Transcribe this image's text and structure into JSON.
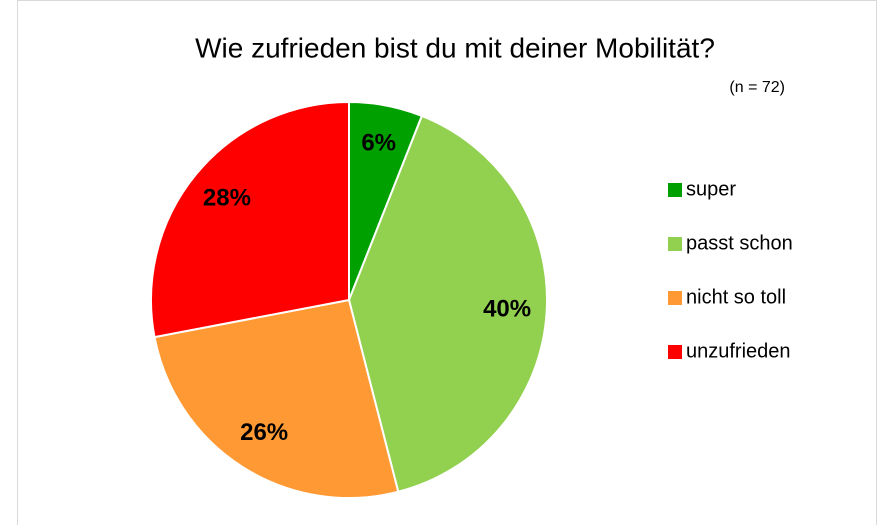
{
  "chart_data": {
    "type": "pie",
    "title": "Wie zufrieden bist du mit deiner Mobilität?",
    "subtitle": "(n = 72)",
    "categories": [
      "super",
      "passt schon",
      "nicht so toll",
      "unzufrieden"
    ],
    "values": [
      6,
      40,
      26,
      28
    ],
    "value_labels": [
      "6%",
      "40%",
      "26%",
      "28%"
    ],
    "colors": [
      "#00a000",
      "#92d050",
      "#ff9933",
      "#ff0000"
    ],
    "legend": "right"
  }
}
